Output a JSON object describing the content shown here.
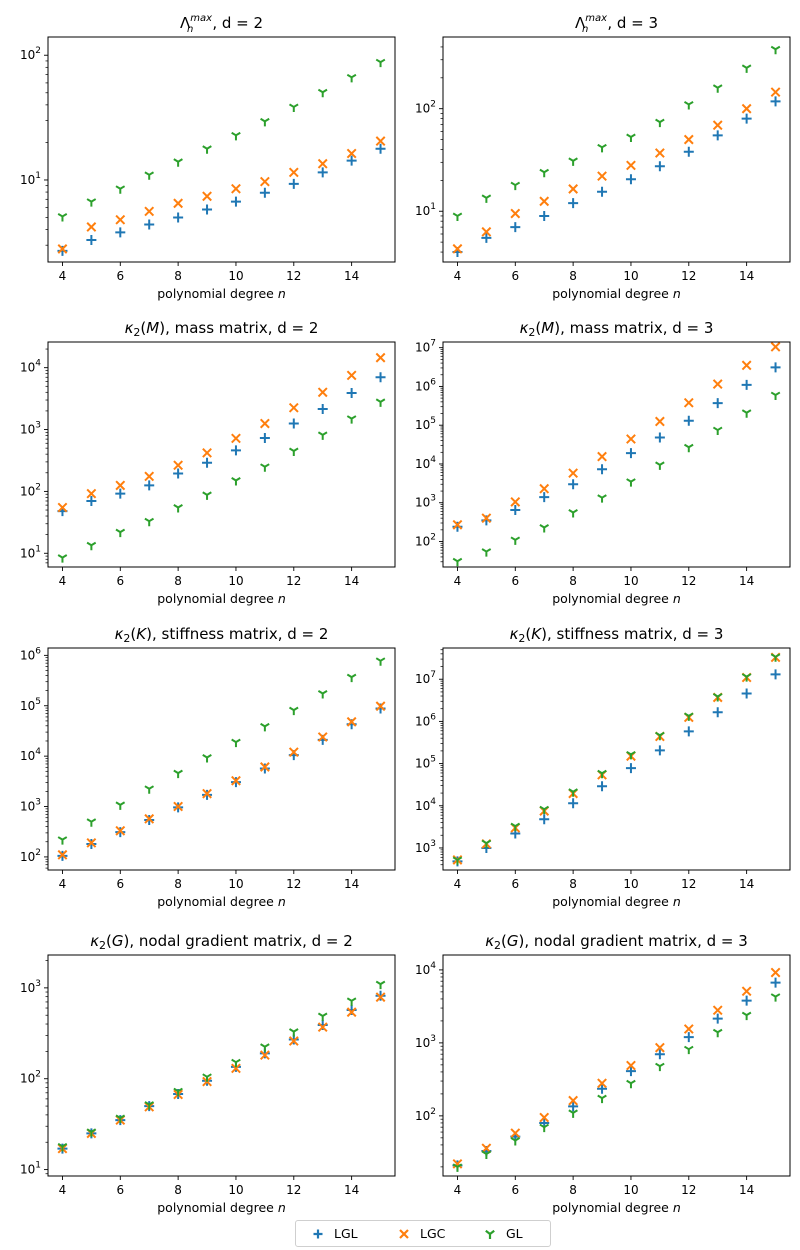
{
  "legend": {
    "items": [
      {
        "label": "LGL",
        "color": "#1f77b4",
        "marker": "plus"
      },
      {
        "label": "LGC",
        "color": "#ff7f0e",
        "marker": "x"
      },
      {
        "label": "GL",
        "color": "#2ca02c",
        "marker": "tri-down"
      }
    ]
  },
  "chart_data": [
    {
      "type": "scatter",
      "id": "lebesgue-d2",
      "title": {
        "pre": "Λ",
        "sub": "n",
        "sup": "max",
        "post": ", d = 2"
      },
      "xlabel": {
        "pre": "polynomial degree ",
        "it": "n"
      },
      "yscale": "log",
      "ylim": [
        2.2,
        140
      ],
      "xlim": [
        3.5,
        15.5
      ],
      "xticks": [
        4,
        6,
        8,
        10,
        12,
        14
      ],
      "yticks": [
        {
          "v": 10,
          "e": "1"
        },
        {
          "v": 100,
          "e": "2"
        }
      ],
      "x": [
        4,
        5,
        6,
        7,
        8,
        9,
        10,
        11,
        12,
        13,
        14,
        15
      ],
      "series": [
        {
          "name": "LGL",
          "values": [
            2.7,
            3.3,
            3.8,
            4.4,
            5.0,
            5.8,
            6.7,
            7.9,
            9.3,
            11.5,
            14.3,
            17.8
          ]
        },
        {
          "name": "LGC",
          "values": [
            2.8,
            4.2,
            4.8,
            5.6,
            6.5,
            7.4,
            8.5,
            9.7,
            11.5,
            13.5,
            16.3,
            20.5
          ]
        },
        {
          "name": "GL",
          "values": [
            5.1,
            6.7,
            8.5,
            11.0,
            14.0,
            17.8,
            22.8,
            29.5,
            38.5,
            50.5,
            66.5,
            88.0
          ]
        }
      ]
    },
    {
      "type": "scatter",
      "id": "lebesgue-d3",
      "title": {
        "pre": "Λ",
        "sub": "n",
        "sup": "max",
        "post": ", d = 3"
      },
      "xlabel": {
        "pre": "polynomial degree ",
        "it": "n"
      },
      "yscale": "log",
      "ylim": [
        3.2,
        500
      ],
      "xlim": [
        3.5,
        15.5
      ],
      "xticks": [
        4,
        6,
        8,
        10,
        12,
        14
      ],
      "yticks": [
        {
          "v": 10,
          "e": "1"
        },
        {
          "v": 100,
          "e": "2"
        }
      ],
      "x": [
        4,
        5,
        6,
        7,
        8,
        9,
        10,
        11,
        12,
        13,
        14,
        15
      ],
      "series": [
        {
          "name": "LGL",
          "values": [
            4.0,
            5.5,
            7.0,
            9.0,
            12.0,
            15.5,
            20.5,
            27.5,
            38.0,
            55.0,
            80.0,
            118.0
          ]
        },
        {
          "name": "LGC",
          "values": [
            4.3,
            6.3,
            9.5,
            12.5,
            16.5,
            22.0,
            28.0,
            37.0,
            50.0,
            69.0,
            100.0,
            145.0
          ]
        },
        {
          "name": "GL",
          "values": [
            9.0,
            13.5,
            18.0,
            24.0,
            31.0,
            42.0,
            53.0,
            74.0,
            110.0,
            160.0,
            250.0,
            380.0
          ]
        }
      ]
    },
    {
      "type": "scatter",
      "id": "mass-d2",
      "title": {
        "kappa": "κ",
        "sub": "2",
        "arg": "M",
        "post": ", mass matrix, d = 2"
      },
      "xlabel": {
        "pre": "polynomial degree ",
        "it": "n"
      },
      "yscale": "log",
      "ylim": [
        6.0,
        26000
      ],
      "xlim": [
        3.5,
        15.5
      ],
      "xticks": [
        4,
        6,
        8,
        10,
        12,
        14
      ],
      "yticks": [
        {
          "v": 10,
          "e": "1"
        },
        {
          "v": 100,
          "e": "2"
        },
        {
          "v": 1000,
          "e": "3"
        },
        {
          "v": 10000,
          "e": "4"
        }
      ],
      "x": [
        4,
        5,
        6,
        7,
        8,
        9,
        10,
        11,
        12,
        13,
        14,
        15
      ],
      "series": [
        {
          "name": "LGL",
          "values": [
            48,
            70,
            92,
            125,
            195,
            290,
            460,
            730,
            1250,
            2150,
            3900,
            7000
          ]
        },
        {
          "name": "LGC",
          "values": [
            55,
            92,
            125,
            175,
            265,
            420,
            720,
            1250,
            2250,
            4000,
            7500,
            14500
          ]
        },
        {
          "name": "GL",
          "values": [
            8.5,
            13.5,
            22,
            33,
            55,
            88,
            150,
            250,
            450,
            820,
            1500,
            2800
          ]
        }
      ]
    },
    {
      "type": "scatter",
      "id": "mass-d3",
      "title": {
        "kappa": "κ",
        "sub": "2",
        "arg": "M",
        "post": ", mass matrix, d = 3"
      },
      "xlabel": {
        "pre": "polynomial degree ",
        "it": "n"
      },
      "yscale": "log",
      "ylim": [
        22,
        14000000
      ],
      "xlim": [
        3.5,
        15.5
      ],
      "xticks": [
        4,
        6,
        8,
        10,
        12,
        14
      ],
      "yticks": [
        {
          "v": 100,
          "e": "2"
        },
        {
          "v": 1000,
          "e": "3"
        },
        {
          "v": 10000,
          "e": "4"
        },
        {
          "v": 100000,
          "e": "5"
        },
        {
          "v": 1000000,
          "e": "6"
        },
        {
          "v": 10000000,
          "e": "7"
        }
      ],
      "x": [
        4,
        5,
        6,
        7,
        8,
        9,
        10,
        11,
        12,
        13,
        14,
        15
      ],
      "series": [
        {
          "name": "LGL",
          "values": [
            240,
            350,
            650,
            1400,
            3000,
            7300,
            19000,
            48000,
            130000,
            370000,
            1100000,
            3100000
          ]
        },
        {
          "name": "LGC",
          "values": [
            270,
            400,
            1050,
            2300,
            5800,
            15500,
            44000,
            125000,
            380000,
            1150000,
            3500000,
            10500000
          ]
        },
        {
          "name": "GL",
          "values": [
            31,
            55,
            110,
            230,
            560,
            1350,
            3500,
            9500,
            27000,
            75000,
            210000,
            600000
          ]
        }
      ]
    },
    {
      "type": "scatter",
      "id": "stiffness-d2",
      "title": {
        "kappa": "κ",
        "sub": "2",
        "arg": "K",
        "post": ", stiffness matrix, d = 2"
      },
      "xlabel": {
        "pre": "polynomial degree ",
        "it": "n"
      },
      "yscale": "log",
      "ylim": [
        55,
        1400000
      ],
      "xlim": [
        3.5,
        15.5
      ],
      "xticks": [
        4,
        6,
        8,
        10,
        12,
        14
      ],
      "yticks": [
        {
          "v": 100,
          "e": "2"
        },
        {
          "v": 1000,
          "e": "3"
        },
        {
          "v": 10000,
          "e": "4"
        },
        {
          "v": 100000,
          "e": "5"
        },
        {
          "v": 1000000,
          "e": "6"
        }
      ],
      "x": [
        4,
        5,
        6,
        7,
        8,
        9,
        10,
        11,
        12,
        13,
        14,
        15
      ],
      "series": [
        {
          "name": "LGL",
          "values": [
            105,
            180,
            310,
            540,
            960,
            1700,
            3050,
            5700,
            10500,
            21000,
            43000,
            88000
          ]
        },
        {
          "name": "LGC",
          "values": [
            110,
            190,
            330,
            570,
            1000,
            1800,
            3250,
            6100,
            12000,
            24000,
            48000,
            98000
          ]
        },
        {
          "name": "GL",
          "values": [
            220,
            500,
            1080,
            2250,
            4600,
            9400,
            19000,
            39000,
            82000,
            175000,
            370000,
            780000
          ]
        }
      ]
    },
    {
      "type": "scatter",
      "id": "stiffness-d3",
      "title": {
        "kappa": "κ",
        "sub": "2",
        "arg": "K",
        "post": ", stiffness matrix, d = 3"
      },
      "xlabel": {
        "pre": "polynomial degree ",
        "it": "n"
      },
      "yscale": "log",
      "ylim": [
        300,
        55000000
      ],
      "xlim": [
        3.5,
        15.5
      ],
      "xticks": [
        4,
        6,
        8,
        10,
        12,
        14
      ],
      "yticks": [
        {
          "v": 1000,
          "e": "3"
        },
        {
          "v": 10000,
          "e": "4"
        },
        {
          "v": 100000,
          "e": "5"
        },
        {
          "v": 1000000,
          "e": "6"
        },
        {
          "v": 10000000,
          "e": "7"
        }
      ],
      "x": [
        4,
        5,
        6,
        7,
        8,
        9,
        10,
        11,
        12,
        13,
        14,
        15
      ],
      "series": [
        {
          "name": "LGL",
          "values": [
            480,
            1000,
            2200,
            4800,
            11500,
            29000,
            78000,
            205000,
            580000,
            1650000,
            4600000,
            13000000
          ]
        },
        {
          "name": "LGC",
          "values": [
            520,
            1250,
            3000,
            7500,
            19500,
            54000,
            150000,
            440000,
            1250000,
            3700000,
            11000000,
            33000000
          ]
        },
        {
          "name": "GL",
          "values": [
            520,
            1300,
            3300,
            8300,
            21500,
            59000,
            165000,
            470000,
            1350000,
            3900000,
            11500000,
            34000000
          ]
        }
      ]
    },
    {
      "type": "scatter",
      "id": "gradient-d2",
      "title": {
        "kappa": "κ",
        "sub": "2",
        "arg": "G",
        "post": ", nodal gradient matrix, d = 2"
      },
      "xlabel": {
        "pre": "polynomial degree ",
        "it": "n"
      },
      "yscale": "log",
      "ylim": [
        8.5,
        2300
      ],
      "xlim": [
        3.5,
        15.5
      ],
      "xticks": [
        4,
        6,
        8,
        10,
        12,
        14
      ],
      "yticks": [
        {
          "v": 10,
          "e": "1"
        },
        {
          "v": 100,
          "e": "2"
        },
        {
          "v": 1000,
          "e": "3"
        }
      ],
      "x": [
        4,
        5,
        6,
        7,
        8,
        9,
        10,
        11,
        12,
        13,
        14,
        15
      ],
      "series": [
        {
          "name": "LGL",
          "values": [
            17,
            25,
            35,
            50,
            68,
            95,
            135,
            190,
            270,
            390,
            570,
            820
          ]
        },
        {
          "name": "LGC",
          "values": [
            17,
            25,
            35,
            49,
            67,
            93,
            130,
            182,
            260,
            370,
            540,
            790
          ]
        },
        {
          "name": "GL",
          "values": [
            18,
            26,
            37,
            52,
            73,
            105,
            152,
            225,
            330,
            490,
            720,
            1100
          ]
        }
      ]
    },
    {
      "type": "scatter",
      "id": "gradient-d3",
      "title": {
        "kappa": "κ",
        "sub": "2",
        "arg": "G",
        "post": ", nodal gradient matrix, d = 3"
      },
      "xlabel": {
        "pre": "polynomial degree ",
        "it": "n"
      },
      "yscale": "log",
      "ylim": [
        15,
        16000
      ],
      "xlim": [
        3.5,
        15.5
      ],
      "xticks": [
        4,
        6,
        8,
        10,
        12,
        14
      ],
      "yticks": [
        {
          "v": 100,
          "e": "2"
        },
        {
          "v": 1000,
          "e": "3"
        },
        {
          "v": 10000,
          "e": "4"
        }
      ],
      "x": [
        4,
        5,
        6,
        7,
        8,
        9,
        10,
        11,
        12,
        13,
        14,
        15
      ],
      "series": [
        {
          "name": "LGL",
          "values": [
            21,
            33,
            52,
            80,
            135,
            235,
            410,
            700,
            1200,
            2150,
            3800,
            6700
          ]
        },
        {
          "name": "LGC",
          "values": [
            22,
            36,
            58,
            95,
            162,
            280,
            490,
            860,
            1550,
            2800,
            5100,
            9200
          ]
        },
        {
          "name": "GL",
          "values": [
            20,
            30,
            46,
            70,
            110,
            175,
            280,
            480,
            820,
            1400,
            2400,
            4300
          ]
        }
      ]
    }
  ]
}
